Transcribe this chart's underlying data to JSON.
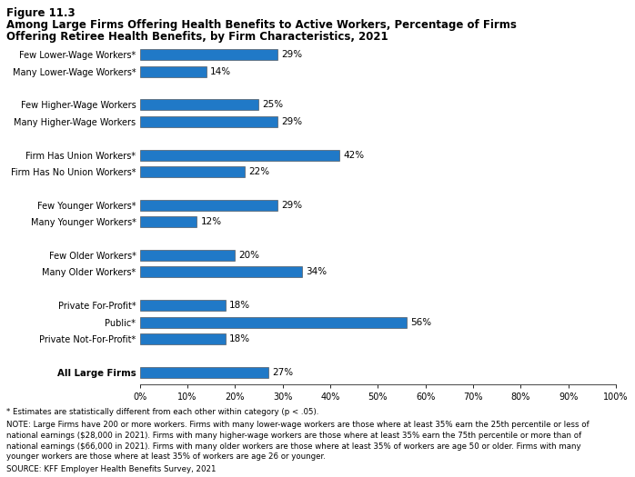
{
  "title_line1": "Figure 11.3",
  "title_line2a": "Among Large Firms Offering Health Benefits to Active Workers, Percentage of Firms",
  "title_line2b": "Offering Retiree Health Benefits, by Firm Characteristics, 2021",
  "categories": [
    "Few Lower-Wage Workers*",
    "Many Lower-Wage Workers*",
    "",
    "Few Higher-Wage Workers",
    "Many Higher-Wage Workers",
    "",
    "Firm Has Union Workers*",
    "Firm Has No Union Workers*",
    "",
    "Few Younger Workers*",
    "Many Younger Workers*",
    "",
    "Few Older Workers*",
    "Many Older Workers*",
    "",
    "Private For-Profit*",
    "Public*",
    "Private Not-For-Profit*",
    "",
    "All Large Firms"
  ],
  "values": [
    29,
    14,
    null,
    25,
    29,
    null,
    42,
    22,
    null,
    29,
    12,
    null,
    20,
    34,
    null,
    18,
    56,
    18,
    null,
    27
  ],
  "bar_color": "#2079C7",
  "xlim": [
    0,
    100
  ],
  "xticks": [
    0,
    10,
    20,
    30,
    40,
    50,
    60,
    70,
    80,
    90,
    100
  ],
  "xticklabels": [
    "0%",
    "10%",
    "20%",
    "30%",
    "40%",
    "50%",
    "60%",
    "70%",
    "80%",
    "90%",
    "100%"
  ],
  "footnote1": "* Estimates are statistically different from each other within category (p < .05).",
  "footnote2": "NOTE: Large Firms have 200 or more workers. Firms with many lower-wage workers are those where at least 35% earn the 25th percentile or less of\nnational earnings ($28,000 in 2021). Firms with many higher-wage workers are those where at least 35% earn the 75th percentile or more than of\nnational earnings ($66,000 in 2021). Firms with many older workers are those where at least 35% of workers are age 50 or older. Firms with many\nyounger workers are those where at least 35% of workers are age 26 or younger.",
  "footnote3": "SOURCE: KFF Employer Health Benefits Survey, 2021",
  "bar_height": 0.65,
  "label_fontsize": 7.5,
  "tick_fontsize": 7.0,
  "footnote_fontsize": 6.2
}
